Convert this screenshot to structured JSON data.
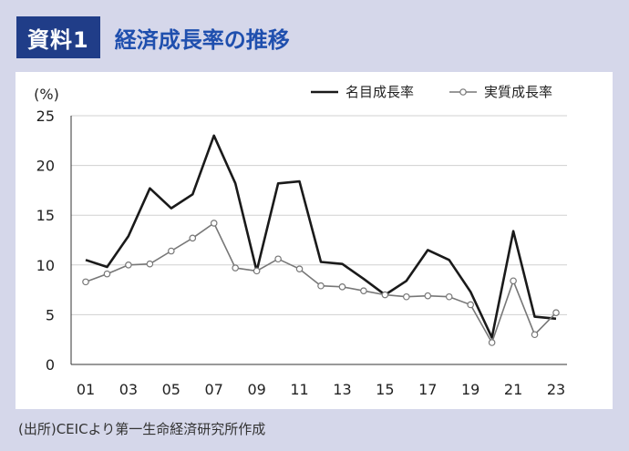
{
  "header": {
    "badge": "資料1",
    "title": "経済成長率の推移"
  },
  "source": "(出所)CEICより第一生命経済研究所作成",
  "colors": {
    "nominal": "#1a1a1a",
    "real": "#777777",
    "grid": "#d0d0d0"
  },
  "chart_data": {
    "type": "line",
    "title": "経済成長率の推移",
    "ylabel": "(%)",
    "xlabel": "",
    "ylim": [
      0,
      25
    ],
    "yticks": [
      "0",
      "5",
      "10",
      "15",
      "20",
      "25"
    ],
    "xtick_labels": [
      "01",
      "03",
      "05",
      "07",
      "09",
      "11",
      "13",
      "15",
      "17",
      "19",
      "21",
      "23"
    ],
    "x": [
      "01",
      "02",
      "03",
      "04",
      "05",
      "06",
      "07",
      "08",
      "09",
      "10",
      "11",
      "12",
      "13",
      "14",
      "15",
      "16",
      "17",
      "18",
      "19",
      "20",
      "21",
      "22",
      "23"
    ],
    "grid": true,
    "legend_position": "top-right",
    "series": [
      {
        "name": "名目成長率",
        "values": [
          10.5,
          9.8,
          12.9,
          17.7,
          15.7,
          17.1,
          23.0,
          18.2,
          9.4,
          18.2,
          18.4,
          10.3,
          10.1,
          8.6,
          7.0,
          8.4,
          11.5,
          10.5,
          7.3,
          2.7,
          13.4,
          4.8,
          4.6
        ],
        "marker": "none"
      },
      {
        "name": "実質成長率",
        "values": [
          8.3,
          9.1,
          10.0,
          10.1,
          11.4,
          12.7,
          14.2,
          9.7,
          9.4,
          10.6,
          9.6,
          7.9,
          7.8,
          7.4,
          7.0,
          6.8,
          6.9,
          6.8,
          6.0,
          2.2,
          8.4,
          3.0,
          5.2
        ],
        "marker": "circle"
      }
    ]
  }
}
